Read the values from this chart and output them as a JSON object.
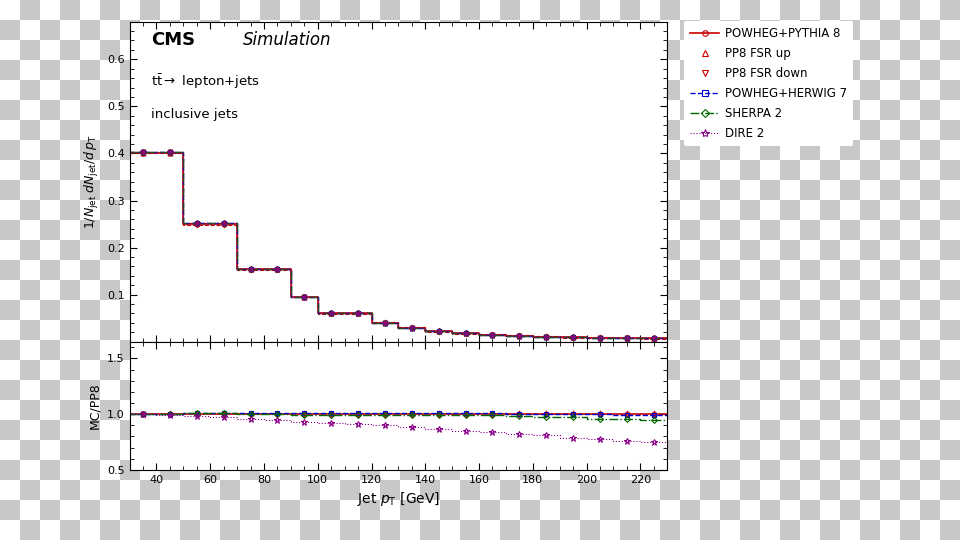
{
  "bin_edges": [
    30,
    40,
    50,
    60,
    70,
    80,
    90,
    100,
    110,
    120,
    130,
    140,
    150,
    160,
    170,
    180,
    190,
    200,
    210,
    220,
    230
  ],
  "bin_centers": [
    35,
    45,
    55,
    65,
    75,
    85,
    95,
    105,
    115,
    125,
    135,
    145,
    155,
    165,
    175,
    185,
    195,
    205,
    215,
    225
  ],
  "pp8_values": [
    0.401,
    0.401,
    0.25,
    0.25,
    0.154,
    0.154,
    0.095,
    0.06,
    0.06,
    0.04,
    0.03,
    0.022,
    0.018,
    0.015,
    0.013,
    0.011,
    0.01,
    0.009,
    0.008,
    0.007
  ],
  "fsr_up_values": [
    0.4,
    0.4,
    0.252,
    0.252,
    0.155,
    0.155,
    0.096,
    0.061,
    0.061,
    0.041,
    0.031,
    0.023,
    0.019,
    0.016,
    0.014,
    0.012,
    0.011,
    0.01,
    0.009,
    0.008
  ],
  "fsr_dn_values": [
    0.402,
    0.402,
    0.249,
    0.249,
    0.153,
    0.153,
    0.094,
    0.059,
    0.059,
    0.039,
    0.029,
    0.021,
    0.017,
    0.014,
    0.012,
    0.01,
    0.009,
    0.008,
    0.007,
    0.006
  ],
  "herwig_values": [
    0.402,
    0.402,
    0.252,
    0.252,
    0.155,
    0.155,
    0.096,
    0.06,
    0.06,
    0.04,
    0.03,
    0.022,
    0.018,
    0.015,
    0.013,
    0.011,
    0.01,
    0.009,
    0.008,
    0.007
  ],
  "sherpa_values": [
    0.403,
    0.403,
    0.253,
    0.253,
    0.154,
    0.154,
    0.094,
    0.06,
    0.06,
    0.039,
    0.03,
    0.022,
    0.018,
    0.015,
    0.012,
    0.011,
    0.01,
    0.009,
    0.008,
    0.007
  ],
  "dire_values": [
    0.403,
    0.403,
    0.253,
    0.253,
    0.154,
    0.154,
    0.094,
    0.06,
    0.06,
    0.039,
    0.03,
    0.022,
    0.018,
    0.015,
    0.012,
    0.011,
    0.01,
    0.009,
    0.008,
    0.007
  ],
  "ratio_fsr_up": [
    1.0,
    1.01,
    1.01,
    1.01,
    1.01,
    1.01,
    1.01,
    1.01,
    1.01,
    1.01,
    1.01,
    1.01,
    1.01,
    1.01,
    1.01,
    1.01,
    1.01,
    1.01,
    1.01,
    1.01
  ],
  "ratio_fsr_dn": [
    1.0,
    0.99,
    0.99,
    0.99,
    0.99,
    0.99,
    0.99,
    0.99,
    0.99,
    0.99,
    0.99,
    0.99,
    0.99,
    0.99,
    0.99,
    0.99,
    0.99,
    0.99,
    0.99,
    0.99
  ],
  "ratio_herwig": [
    1.0,
    1.0,
    1.01,
    1.01,
    1.01,
    1.01,
    1.01,
    1.01,
    1.01,
    1.01,
    1.01,
    1.01,
    1.01,
    1.01,
    1.0,
    1.0,
    1.0,
    1.0,
    0.99,
    0.99
  ],
  "ratio_sherpa": [
    1.0,
    1.0,
    1.01,
    1.01,
    1.0,
    1.0,
    0.99,
    0.99,
    0.99,
    0.99,
    0.99,
    0.99,
    0.99,
    0.99,
    0.98,
    0.97,
    0.97,
    0.96,
    0.96,
    0.95
  ],
  "ratio_dire": [
    1.0,
    0.99,
    0.98,
    0.97,
    0.96,
    0.95,
    0.93,
    0.92,
    0.91,
    0.9,
    0.88,
    0.87,
    0.85,
    0.84,
    0.82,
    0.81,
    0.79,
    0.78,
    0.76,
    0.75
  ],
  "color_pp8": "#cc0000",
  "color_fsr_up": "#cc0000",
  "color_fsr_dn": "#cc0000",
  "color_herwig": "#0000cc",
  "color_sherpa": "#006600",
  "color_dire": "#880088",
  "bg_color": "#c8c8c8",
  "check_color1": "#c8c8c8",
  "check_color2": "#ffffff",
  "xlim": [
    30,
    230
  ],
  "ylim_main": [
    0.0,
    0.68
  ],
  "ylim_ratio": [
    0.5,
    1.65
  ],
  "yticks_main": [
    0.1,
    0.2,
    0.3,
    0.4,
    0.5,
    0.6
  ],
  "yticks_ratio": [
    0.5,
    1.0,
    1.5
  ],
  "xticks": [
    40,
    60,
    80,
    100,
    120,
    140,
    160,
    180,
    200,
    220
  ]
}
